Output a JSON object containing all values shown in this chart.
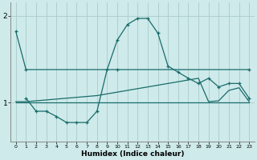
{
  "xlabel": "Humidex (Indice chaleur)",
  "bg_color": "#ceeaea",
  "line_color": "#1a6b6b",
  "grid_color": "#aacccc",
  "xlim": [
    -0.5,
    23.5
  ],
  "ylim": [
    0.55,
    2.15
  ],
  "yticks": [
    1,
    2
  ],
  "xtick_labels": [
    "0",
    "1",
    "2",
    "3",
    "4",
    "5",
    "6",
    "7",
    "8",
    "9",
    "10",
    "11",
    "12",
    "13",
    "14",
    "15",
    "16",
    "17",
    "18",
    "19",
    "20",
    "21",
    "22",
    "23"
  ],
  "series1_x": [
    0,
    1,
    10,
    23
  ],
  "series1_y": [
    1.82,
    1.38,
    1.38,
    1.38
  ],
  "series2_x": [
    1,
    2,
    3,
    4,
    5,
    6,
    7,
    8,
    9,
    10,
    11,
    12,
    13,
    14,
    15,
    16,
    17,
    18,
    19,
    20,
    21,
    22,
    23
  ],
  "series2_y": [
    1.05,
    0.9,
    0.9,
    0.84,
    0.77,
    0.77,
    0.77,
    0.9,
    1.38,
    1.72,
    1.9,
    1.97,
    1.97,
    1.8,
    1.42,
    1.35,
    1.28,
    1.22,
    1.28,
    1.18,
    1.22,
    1.22,
    1.05
  ],
  "series3_x": [
    0,
    1,
    2,
    3,
    4,
    5,
    6,
    7,
    8,
    9,
    10,
    11,
    12,
    13,
    14,
    15,
    16,
    17,
    18,
    19,
    20,
    21,
    22,
    23
  ],
  "series3_y": [
    1.01,
    1.01,
    1.02,
    1.03,
    1.04,
    1.05,
    1.06,
    1.07,
    1.08,
    1.1,
    1.12,
    1.14,
    1.16,
    1.18,
    1.2,
    1.22,
    1.24,
    1.26,
    1.28,
    1.01,
    1.02,
    1.14,
    1.17,
    1.01
  ],
  "series4_x": [
    0,
    1,
    2,
    3,
    4,
    5,
    6,
    7,
    8,
    9,
    10,
    11,
    12,
    13,
    14,
    15,
    16,
    17,
    18,
    19,
    20,
    21,
    22,
    23
  ],
  "series4_y": [
    1.0,
    1.0,
    1.0,
    1.0,
    1.0,
    1.0,
    1.0,
    1.0,
    1.0,
    1.0,
    1.0,
    1.0,
    1.0,
    1.0,
    1.0,
    1.0,
    1.0,
    1.0,
    1.0,
    1.0,
    1.0,
    1.0,
    1.0,
    1.0
  ]
}
